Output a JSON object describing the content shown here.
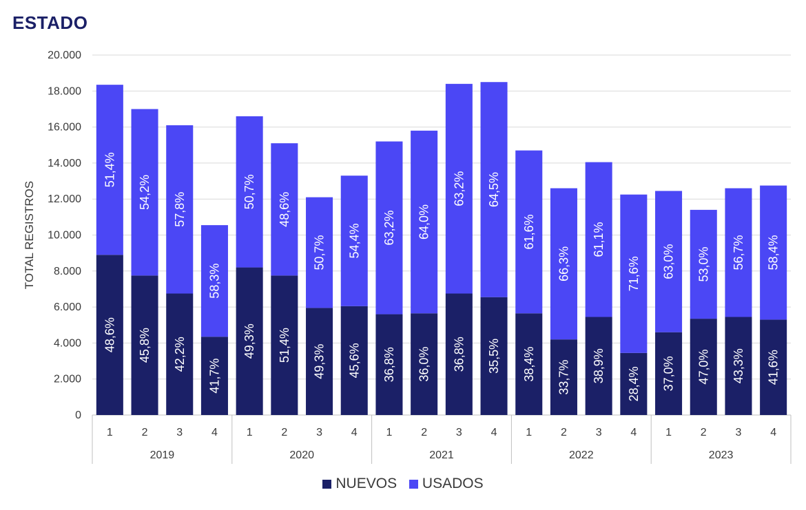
{
  "chart_data": {
    "type": "bar",
    "stacked": true,
    "title": "ESTADO",
    "xlabel": "",
    "ylabel": "TOTAL REGISTROS",
    "ylim": [
      0,
      20000
    ],
    "yticks": [
      0,
      2000,
      4000,
      6000,
      8000,
      10000,
      12000,
      14000,
      16000,
      18000,
      20000
    ],
    "ytick_labels": [
      "0",
      "2.000",
      "4.000",
      "6.000",
      "8.000",
      "10.000",
      "12.000",
      "14.000",
      "16.000",
      "18.000",
      "20.000"
    ],
    "grid": true,
    "legend_position": "bottom",
    "groups": [
      {
        "label": "2019",
        "quarters": [
          "1",
          "2",
          "3",
          "4"
        ]
      },
      {
        "label": "2020",
        "quarters": [
          "1",
          "2",
          "3",
          "4"
        ]
      },
      {
        "label": "2021",
        "quarters": [
          "1",
          "2",
          "3",
          "4"
        ]
      },
      {
        "label": "2022",
        "quarters": [
          "1",
          "2",
          "3",
          "4"
        ]
      },
      {
        "label": "2023",
        "quarters": [
          "1",
          "2",
          "3",
          "4"
        ]
      }
    ],
    "series": [
      {
        "name": "NUEVOS",
        "color": "#1b2067",
        "values": [
          8900,
          7750,
          6750,
          4350,
          8200,
          7750,
          5950,
          6050,
          5600,
          5650,
          6750,
          6550,
          5650,
          4200,
          5450,
          3450,
          4600,
          5350,
          5450,
          5300
        ],
        "labels": [
          "48,6%",
          "45,8%",
          "42,2%",
          "41,7%",
          "49,3%",
          "51,4%",
          "49,3%",
          "45,6%",
          "36,8%",
          "36,0%",
          "36,8%",
          "35,5%",
          "38,4%",
          "33,7%",
          "38,9%",
          "28,4%",
          "37,0%",
          "47,0%",
          "43,3%",
          "41,6%"
        ]
      },
      {
        "name": "USADOS",
        "color": "#4b47f5",
        "values": [
          9450,
          9250,
          9350,
          6200,
          8400,
          7350,
          6150,
          7250,
          9600,
          10150,
          11650,
          11950,
          9050,
          8400,
          8600,
          8800,
          7850,
          6050,
          7150,
          7450
        ],
        "labels": [
          "51,4%",
          "54,2%",
          "57,8%",
          "58,3%",
          "50,7%",
          "48,6%",
          "50,7%",
          "54,4%",
          "63,2%",
          "64,0%",
          "63,2%",
          "64,5%",
          "61,6%",
          "66,3%",
          "61,1%",
          "71,6%",
          "63,0%",
          "53,0%",
          "56,7%",
          "58,4%"
        ]
      }
    ]
  },
  "colors": {
    "title": "#1b2067",
    "grid": "#d9d9d9",
    "axis": "#bfbfbf"
  }
}
